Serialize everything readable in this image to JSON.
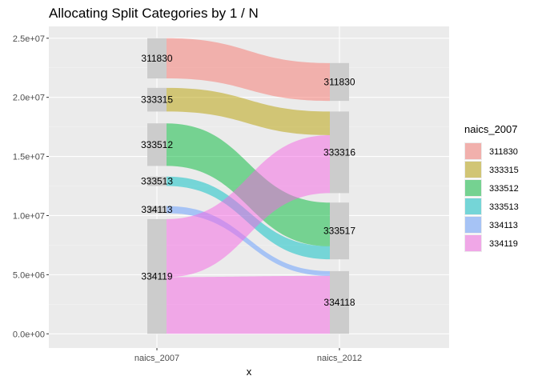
{
  "chart_data": {
    "type": "alluvial",
    "title": "Allocating Split Categories by 1 / N",
    "xlabel": "x",
    "ylabel": "",
    "categories": [
      "naics_2007",
      "naics_2012"
    ],
    "ylim": [
      -1200000,
      26000000
    ],
    "yticks": [
      0,
      5000000,
      10000000,
      15000000,
      20000000,
      25000000
    ],
    "ytick_labels": [
      "0.0e+00",
      "5.0e+06",
      "1.0e+07",
      "1.5e+07",
      "2.0e+07",
      "2.5e+07"
    ],
    "grid": true,
    "legend": {
      "title": "naics_2007",
      "placement": "right",
      "items": [
        "311830",
        "333315",
        "333512",
        "333513",
        "334113",
        "334119"
      ]
    },
    "colors": {
      "panel": "#ebebeb",
      "grid_major": "#ffffff",
      "grid_minor": "#f4f4f4",
      "stratum": "#cccccc",
      "311830": "#f8766d",
      "333315": "#b79f00",
      "333512": "#00ba38",
      "333513": "#00bfc4",
      "334113": "#619cff",
      "334119": "#f564e3"
    },
    "strata": {
      "naics_2007": [
        {
          "label": "311830",
          "start": 21600000,
          "end": 25000000
        },
        {
          "label": "333315",
          "start": 18800000,
          "end": 20800000
        },
        {
          "label": "333512",
          "start": 14200000,
          "end": 17800000
        },
        {
          "label": "333513",
          "start": 12500000,
          "end": 13300000
        },
        {
          "label": "334113",
          "start": 10200000,
          "end": 10800000
        },
        {
          "label": "334119",
          "start": 0,
          "end": 9700000
        }
      ],
      "naics_2012": [
        {
          "label": "311830",
          "start": 19700000,
          "end": 22900000
        },
        {
          "label": "333316",
          "start": 11900000,
          "end": 18800000
        },
        {
          "label": "333517",
          "start": 6300000,
          "end": 11100000
        },
        {
          "label": "334118",
          "start": 0,
          "end": 5300000
        }
      ]
    },
    "flows": [
      {
        "group": "311830",
        "from": [
          21600000,
          25000000
        ],
        "to": [
          19700000,
          22900000
        ]
      },
      {
        "group": "333315",
        "from": [
          18800000,
          20800000
        ],
        "to": [
          16800000,
          18800000
        ]
      },
      {
        "group": "333512",
        "from": [
          14200000,
          17800000
        ],
        "to": [
          7400000,
          11100000
        ]
      },
      {
        "group": "333513",
        "from": [
          12500000,
          13300000
        ],
        "to": [
          6300000,
          7400000
        ]
      },
      {
        "group": "334113",
        "from": [
          10200000,
          10800000
        ],
        "to": [
          4900000,
          5300000
        ]
      },
      {
        "group": "334119",
        "from": [
          4800000,
          9700000
        ],
        "to": [
          11900000,
          16800000
        ]
      },
      {
        "group": "334119",
        "from": [
          0,
          4800000
        ],
        "to": [
          0,
          4900000
        ]
      }
    ]
  }
}
